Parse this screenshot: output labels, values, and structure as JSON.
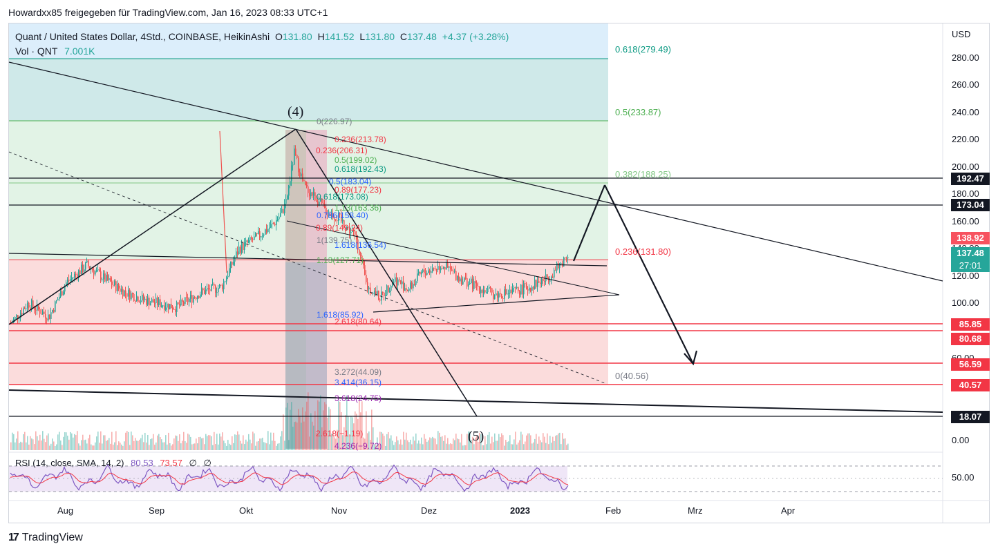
{
  "header": {
    "text": "Howardxx85 freigegeben für TradingView.com, Jan 16, 2023 08:33 UTC+1"
  },
  "legend": {
    "symbol": "Quant / United States Dollar, 4Std., COINBASE, HeikinAshi",
    "o_label": "O",
    "o": "131.80",
    "h_label": "H",
    "h": "141.52",
    "l_label": "L",
    "l": "131.80",
    "c_label": "C",
    "c": "137.48",
    "change": "+4.37 (+3.28%)",
    "vol_label": "Vol · QNT",
    "vol": "7.001K",
    "rsi_label": "RSI (14, close, SMA, 14, 2)",
    "rsi": "80.53",
    "rsi_ma": "73.57",
    "empty1": "∅",
    "empty2": "∅"
  },
  "axis": {
    "currency": "USD",
    "y_ticks": [
      "280.00",
      "260.00",
      "240.00",
      "220.00",
      "200.00",
      "180.00",
      "160.00",
      "140.00",
      "120.00",
      "100.00",
      "60.00",
      "0.00"
    ],
    "rsi_tick": "50.00",
    "x_ticks": [
      "Aug",
      "Sep",
      "Okt",
      "Nov",
      "Dez",
      "2023",
      "Feb",
      "Mrz",
      "Apr"
    ]
  },
  "price_tags": [
    {
      "id": "tag-192",
      "text": "192.47",
      "color": "#131722"
    },
    {
      "id": "tag-173",
      "text": "173.04",
      "color": "#131722"
    },
    {
      "id": "tag-138",
      "text": "138.92",
      "color": "#f7525f"
    },
    {
      "id": "tag-137",
      "text": "137.48",
      "color": "#26a69a"
    },
    {
      "id": "tag-countdown",
      "text": "27:01",
      "color": "#26a69a"
    },
    {
      "id": "tag-85",
      "text": "85.85",
      "color": "#f23645"
    },
    {
      "id": "tag-80",
      "text": "80.68",
      "color": "#f23645"
    },
    {
      "id": "tag-56",
      "text": "56.59",
      "color": "#f23645"
    },
    {
      "id": "tag-40",
      "text": "40.57",
      "color": "#f23645"
    },
    {
      "id": "tag-18",
      "text": "18.07",
      "color": "#131722"
    }
  ],
  "fib_big": [
    {
      "label": "0.618(279.49)",
      "color": "#089981"
    },
    {
      "label": "0.5(233.87)",
      "color": "#4caf50"
    },
    {
      "label": "0.382(188.25)",
      "color": "#81c784"
    },
    {
      "label": "0.236(131.80)",
      "color": "#f23645"
    },
    {
      "label": "0(40.56)",
      "color": "#787b86"
    }
  ],
  "fib_small": [
    {
      "label": "0(226.97)",
      "color": "#787b86"
    },
    {
      "label": "0.236(213.78)",
      "color": "#f23645"
    },
    {
      "label": "0.236(206.31)",
      "color": "#f23645"
    },
    {
      "label": "0.5(199.02)",
      "color": "#4caf50"
    },
    {
      "label": "0.618(192.43)",
      "color": "#089981"
    },
    {
      "label": "0.5(183.04)",
      "color": "#2962ff"
    },
    {
      "label": "0.89(177.23)",
      "color": "#f23645"
    },
    {
      "label": "0.618(173.08)",
      "color": "#089981"
    },
    {
      "label": "1.13(163.36)",
      "color": "#4caf50"
    },
    {
      "label": "0.786(158.40)",
      "color": "#2962ff"
    },
    {
      "label": "0.89(149.24)",
      "color": "#f23645"
    },
    {
      "label": "1(139.75)",
      "color": "#787b86"
    },
    {
      "label": "1.618(136.54)",
      "color": "#2962ff"
    },
    {
      "label": "1.13(127.71)",
      "color": "#4caf50"
    },
    {
      "label": "1.618(85.92)",
      "color": "#2962ff"
    },
    {
      "label": "2.618(80.64)",
      "color": "#f23645"
    },
    {
      "label": "3.272(44.09)",
      "color": "#787b86"
    },
    {
      "label": "3.414(36.15)",
      "color": "#2962ff"
    },
    {
      "label": "3.618(24.75)",
      "color": "#9c27b0"
    },
    {
      "label": "2.618(−1.19)",
      "color": "#f23645"
    },
    {
      "label": "4.236(−9.72)",
      "color": "#9c27b0"
    }
  ],
  "waves": {
    "w4": "(4)",
    "w5": "(5)"
  },
  "colors": {
    "up": "#26a69a",
    "down": "#ef5350",
    "fib_green": "#e2f3e6",
    "fib_teal": "#cfe9e9",
    "fib_red": "#fbdcdc",
    "fib_blue": "#dceefb",
    "rsi_band": "#efe6f7",
    "rsi_line": "#7e57c2",
    "rsi_ma": "#f23645"
  },
  "chart_data": {
    "type": "candlestick",
    "title": "Quant / United States Dollar, 4Std., COINBASE, HeikinAshi",
    "ylabel": "USD",
    "ylim": [
      -5,
      300
    ],
    "y_ticks": [
      0,
      60,
      100,
      120,
      140,
      160,
      180,
      200,
      220,
      240,
      260,
      280
    ],
    "x_ticks": [
      "Aug",
      "Sep",
      "Okt",
      "Nov",
      "Dez",
      "2023",
      "Feb",
      "Mrz",
      "Apr"
    ],
    "series": [
      {
        "name": "QNT",
        "dates": [
          "Jul 15",
          "Jul 25",
          "Aug 5",
          "Aug 15",
          "Aug 25",
          "Sep 5",
          "Sep 15",
          "Sep 25",
          "Oct 5",
          "Oct 12",
          "Oct 15",
          "Oct 20",
          "Oct 25",
          "Nov 1",
          "Nov 8",
          "Nov 12",
          "Nov 20",
          "Dec 1",
          "Dec 10",
          "Dec 20",
          "Jan 1",
          "Jan 10",
          "Jan 16"
        ],
        "close": [
          85,
          100,
          128,
          118,
          102,
          98,
          97,
          105,
          150,
          178,
          225,
          180,
          172,
          160,
          128,
          105,
          118,
          128,
          112,
          106,
          108,
          120,
          137.48
        ]
      }
    ],
    "horizontal_levels": [
      192.47,
      173.04,
      85.85,
      80.68,
      56.59,
      40.57,
      18.07
    ],
    "last_price": 137.48
  }
}
